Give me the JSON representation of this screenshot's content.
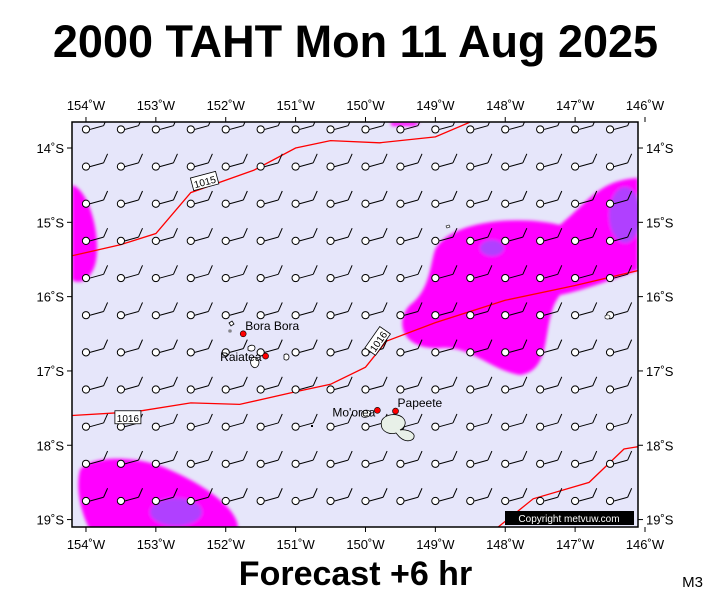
{
  "header": {
    "title": "2000 TAHT Mon 11 Aug 2025"
  },
  "footer": {
    "forecast": "Forecast +6 hr",
    "model": "M3"
  },
  "map": {
    "lon_ticks": [
      -154,
      -153,
      -152,
      -151,
      -150,
      -149,
      -148,
      -147,
      -146
    ],
    "lon_labels": [
      "154˚W",
      "153˚W",
      "152˚W",
      "151˚W",
      "150˚W",
      "149˚W",
      "148˚W",
      "147˚W",
      "146˚W"
    ],
    "lat_ticks": [
      -14,
      -15,
      -16,
      -17,
      -18,
      -19
    ],
    "lat_labels": [
      "14˚S",
      "15˚S",
      "16˚S",
      "17˚S",
      "18˚S",
      "19˚S"
    ],
    "extent": {
      "lon": [
        -154.2,
        -146.1
      ],
      "lat": [
        -19.1,
        -13.65
      ]
    },
    "background_color": "#e6e6fa",
    "rain_colors": {
      "light": "#ff00ff",
      "heavy": "#b040ff"
    },
    "isobar_color": "#ff0000",
    "places": [
      {
        "name": "Bora Bora",
        "lon": -151.75,
        "lat": -16.5,
        "label": "Bora Bora"
      },
      {
        "name": "Raiatea",
        "lon": -151.43,
        "lat": -16.8,
        "label": "Raiatea"
      },
      {
        "name": "Mo'orea",
        "lon": -149.83,
        "lat": -17.53,
        "label": "Mo'orea"
      },
      {
        "name": "Papeete",
        "lon": -149.57,
        "lat": -17.54,
        "label": "Papeete"
      }
    ],
    "isobars": [
      {
        "value": "1015",
        "label": "1015",
        "points": [
          [
            -154.2,
            -15.45
          ],
          [
            -153.5,
            -15.3
          ],
          [
            -153.0,
            -15.15
          ],
          [
            -152.5,
            -14.6
          ],
          [
            -151.6,
            -14.3
          ],
          [
            -151.0,
            -14.0
          ],
          [
            -150.5,
            -13.9
          ],
          [
            -149.8,
            -13.93
          ],
          [
            -149.0,
            -13.85
          ],
          [
            -148.5,
            -13.65
          ]
        ],
        "label_at": [
          -152.3,
          -14.45
        ]
      },
      {
        "value": "1016",
        "label": "1016",
        "points": [
          [
            -154.2,
            -17.6
          ],
          [
            -153.3,
            -17.55
          ],
          [
            -152.5,
            -17.43
          ],
          [
            -151.8,
            -17.45
          ],
          [
            -151.0,
            -17.28
          ],
          [
            -150.5,
            -17.18
          ],
          [
            -150.0,
            -16.95
          ],
          [
            -149.7,
            -16.6
          ],
          [
            -149.0,
            -16.35
          ],
          [
            -148.0,
            -16.05
          ],
          [
            -147.0,
            -15.85
          ],
          [
            -146.1,
            -15.65
          ]
        ],
        "label_at": [
          -149.75,
          -16.6
        ]
      },
      {
        "value": "1016",
        "label": "1016",
        "points": [
          [
            -148.1,
            -19.1
          ],
          [
            -147.6,
            -18.72
          ],
          [
            -146.8,
            -18.5
          ],
          [
            -146.3,
            -18.05
          ],
          [
            -146.1,
            -18.02
          ]
        ]
      }
    ],
    "isobar_labels": [
      {
        "text": "1015",
        "lon": -152.3,
        "lat": -14.45
      },
      {
        "text": "1016",
        "lon": -149.82,
        "lat": -16.6
      },
      {
        "text": "1016",
        "lon": -153.4,
        "lat": -17.63
      }
    ],
    "wind_barbs": {
      "lon_step": 0.5,
      "lat_step": 0.5,
      "speed_kt": 10
    },
    "copyright": "Copyright metvuw.com"
  }
}
